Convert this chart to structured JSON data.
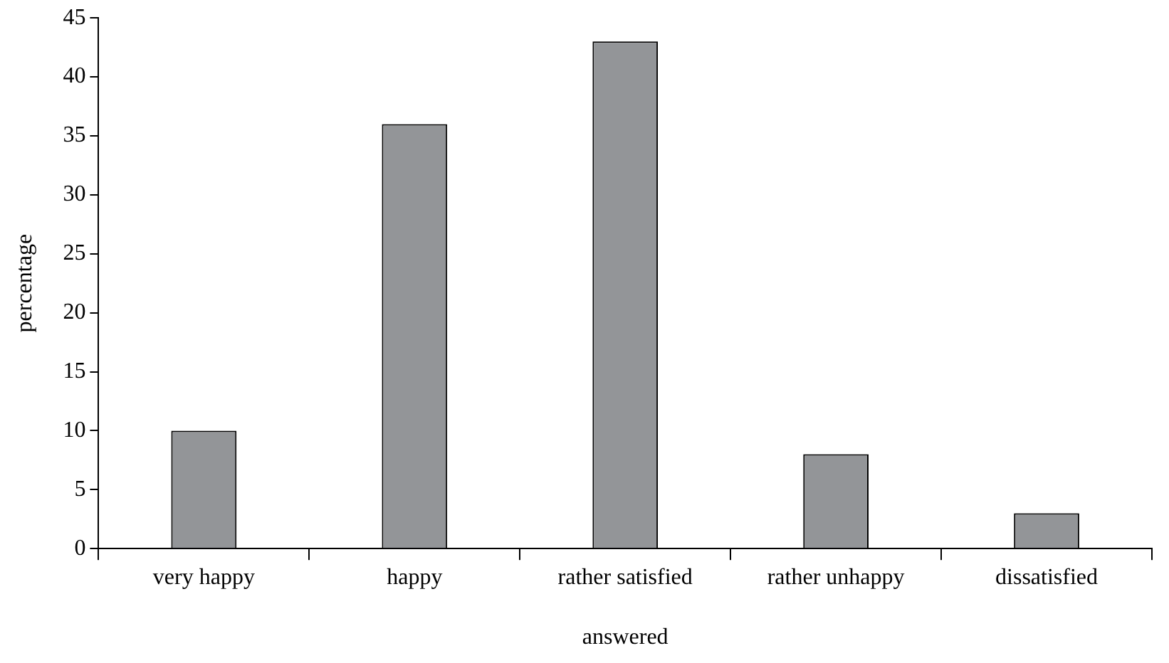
{
  "chart_data": {
    "type": "bar",
    "xlabel": "answered",
    "ylabel": "percentage",
    "categories": [
      "very happy",
      "happy",
      "rather satisfied",
      "rather unhappy",
      "dissatisfied"
    ],
    "values": [
      10,
      36,
      43,
      8,
      3
    ],
    "color": "#939598",
    "ylim": [
      0,
      45
    ],
    "yticks": [
      0,
      5,
      10,
      15,
      20,
      25,
      30,
      35,
      40,
      45
    ],
    "grid": false,
    "legend": false
  }
}
